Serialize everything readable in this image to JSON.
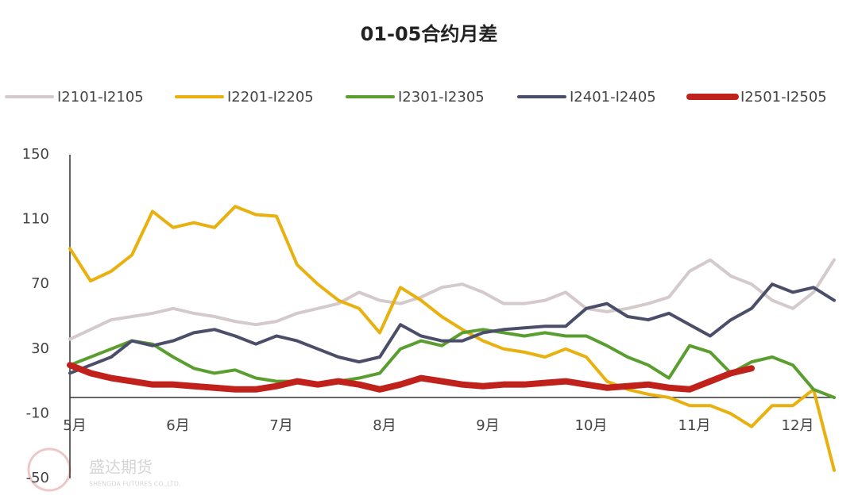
{
  "chart_data": {
    "type": "line",
    "title": "01-05合约月差",
    "categories": [
      "5月",
      null,
      null,
      null,
      null,
      "6月",
      null,
      null,
      null,
      null,
      "7月",
      null,
      null,
      null,
      null,
      "8月",
      null,
      null,
      null,
      null,
      "9月",
      null,
      null,
      null,
      null,
      "10月",
      null,
      null,
      null,
      null,
      "11月",
      null,
      null,
      null,
      null,
      "12月",
      null,
      null
    ],
    "series": [
      {
        "name": "I2101-I2105",
        "color": "#d4c9cb",
        "values": [
          36,
          42,
          48,
          50,
          52,
          55,
          52,
          50,
          47,
          45,
          47,
          52,
          55,
          58,
          65,
          60,
          58,
          62,
          68,
          70,
          65,
          58,
          58,
          60,
          65,
          55,
          53,
          55,
          58,
          62,
          78,
          85,
          75,
          70,
          60,
          55,
          65,
          85
        ]
      },
      {
        "name": "I2201-I2205",
        "color": "#e8b10f",
        "values": [
          92,
          72,
          78,
          88,
          115,
          105,
          108,
          105,
          118,
          113,
          112,
          82,
          70,
          60,
          55,
          40,
          68,
          60,
          50,
          42,
          35,
          30,
          28,
          25,
          30,
          25,
          10,
          5,
          2,
          0,
          -5,
          -5,
          -10,
          -18,
          -5,
          -5,
          5,
          -45
        ]
      },
      {
        "name": "I2301-I2305",
        "color": "#5a9e2f",
        "values": [
          20,
          25,
          30,
          35,
          33,
          25,
          18,
          15,
          17,
          12,
          10,
          10,
          8,
          10,
          12,
          15,
          30,
          35,
          32,
          40,
          42,
          40,
          38,
          40,
          38,
          38,
          32,
          25,
          20,
          12,
          32,
          28,
          15,
          22,
          25,
          20,
          5,
          0
        ]
      },
      {
        "name": "I2401-I2405",
        "color": "#4a4e69",
        "values": [
          15,
          20,
          25,
          35,
          32,
          35,
          40,
          42,
          38,
          33,
          38,
          35,
          30,
          25,
          22,
          25,
          45,
          38,
          35,
          35,
          40,
          42,
          43,
          44,
          44,
          55,
          58,
          50,
          48,
          52,
          45,
          38,
          48,
          55,
          70,
          65,
          68,
          60
        ]
      },
      {
        "name": "I2501-I2505",
        "color": "#c0221b",
        "values": [
          20,
          15,
          12,
          10,
          8,
          8,
          7,
          6,
          5,
          5,
          7,
          10,
          8,
          10,
          8,
          5,
          8,
          12,
          10,
          8,
          7,
          8,
          8,
          9,
          10,
          8,
          6,
          7,
          8,
          6,
          5,
          10,
          15,
          18,
          null,
          null,
          null,
          null
        ]
      }
    ],
    "ylim": [
      -50,
      150
    ],
    "yticks": [
      -50,
      -10,
      30,
      70,
      110,
      150
    ],
    "watermark": "盛达期货",
    "watermark_sub": "SHENGDA FUTURES CO.,LTD."
  }
}
